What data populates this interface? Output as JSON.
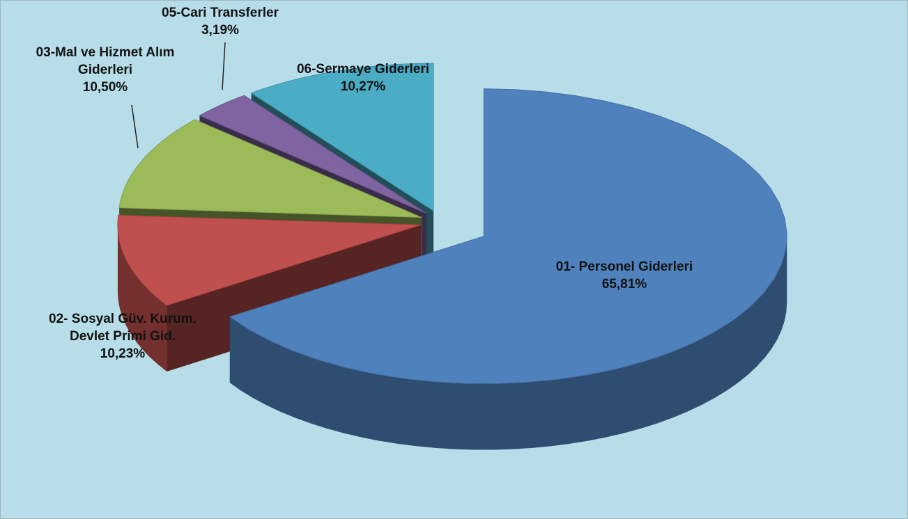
{
  "chart_data": {
    "type": "pie",
    "categories": [
      "01- Personel Giderleri",
      "02- Sosyal Güv. Kurum. Devlet Primi Gid.",
      "03-Mal ve Hizmet Alım Giderleri",
      "05-Cari Transferler",
      "06-Sermaye Giderleri"
    ],
    "values": [
      65.81,
      10.23,
      10.5,
      3.19,
      10.27
    ],
    "value_labels": [
      "65,81%",
      "10,23%",
      "10,50%",
      "3,19%",
      "10,27%"
    ],
    "colors": [
      "#4f81bd",
      "#c0504d",
      "#9bbb59",
      "#8064a2",
      "#4bacc6"
    ]
  }
}
